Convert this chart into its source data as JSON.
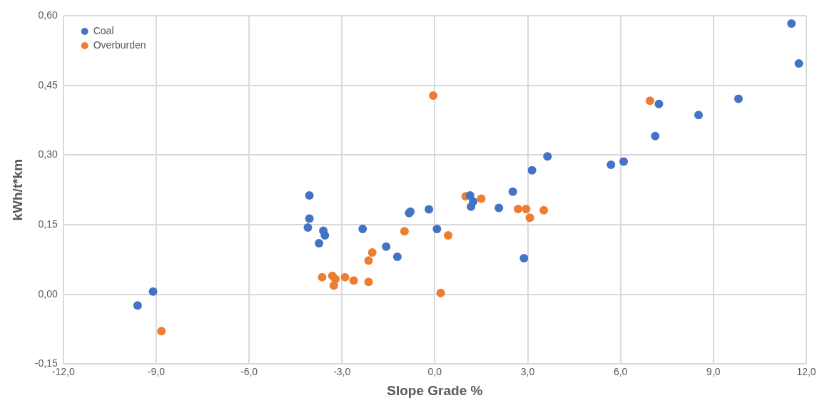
{
  "chart_data": {
    "type": "scatter",
    "xlabel": "Slope Grade %",
    "ylabel": "kWh/t*km",
    "xlim": [
      -12,
      12
    ],
    "ylim": [
      -0.15,
      0.6
    ],
    "xticks": [
      {
        "value": -12,
        "label": "-12,0"
      },
      {
        "value": -9,
        "label": "-9,0"
      },
      {
        "value": -6,
        "label": "-6,0"
      },
      {
        "value": -3,
        "label": "-3,0"
      },
      {
        "value": 0,
        "label": "0,0"
      },
      {
        "value": 3,
        "label": "3,0"
      },
      {
        "value": 6,
        "label": "6,0"
      },
      {
        "value": 9,
        "label": "9,0"
      },
      {
        "value": 12,
        "label": "12,0"
      }
    ],
    "yticks": [
      {
        "value": -0.15,
        "label": "-0,15"
      },
      {
        "value": 0,
        "label": "0,00"
      },
      {
        "value": 0.15,
        "label": "0,15"
      },
      {
        "value": 0.3,
        "label": "0,30"
      },
      {
        "value": 0.45,
        "label": "0,45"
      },
      {
        "value": 0.6,
        "label": "0,60"
      }
    ],
    "grid": true,
    "legend": "top left",
    "marker": "circle",
    "series": [
      {
        "name": "Coal",
        "color": "#4472c4",
        "x": [
          -9.6,
          -9.1,
          -4.05,
          -4.05,
          -4.1,
          -3.6,
          -3.55,
          -3.74,
          -2.33,
          -1.57,
          -1.21,
          -0.83,
          -0.79,
          -0.19,
          0.07,
          1.14,
          1.24,
          1.17,
          2.07,
          2.52,
          2.88,
          3.14,
          3.64,
          5.69,
          6.1,
          7.12,
          7.24,
          8.52,
          9.81,
          11.52,
          11.76
        ],
        "values": [
          -0.024,
          0.006,
          0.213,
          0.163,
          0.144,
          0.137,
          0.127,
          0.11,
          0.141,
          0.103,
          0.081,
          0.175,
          0.178,
          0.183,
          0.141,
          0.213,
          0.2,
          0.189,
          0.186,
          0.221,
          0.078,
          0.267,
          0.297,
          0.279,
          0.286,
          0.341,
          0.41,
          0.386,
          0.421,
          0.583,
          0.497
        ]
      },
      {
        "name": "Overburden",
        "color": "#ed7d31",
        "x": [
          -8.83,
          -3.64,
          -3.31,
          -3.21,
          -3.26,
          -2.9,
          -2.62,
          -2.14,
          -2.14,
          -2.02,
          -0.98,
          0.43,
          0.19,
          1.0,
          1.5,
          2.69,
          2.95,
          3.07,
          3.52,
          -0.05,
          6.95
        ],
        "values": [
          -0.079,
          0.037,
          0.04,
          0.033,
          0.019,
          0.037,
          0.03,
          0.027,
          0.073,
          0.09,
          0.136,
          0.127,
          0.003,
          0.211,
          0.206,
          0.184,
          0.184,
          0.165,
          0.181,
          0.428,
          0.417
        ]
      }
    ]
  }
}
